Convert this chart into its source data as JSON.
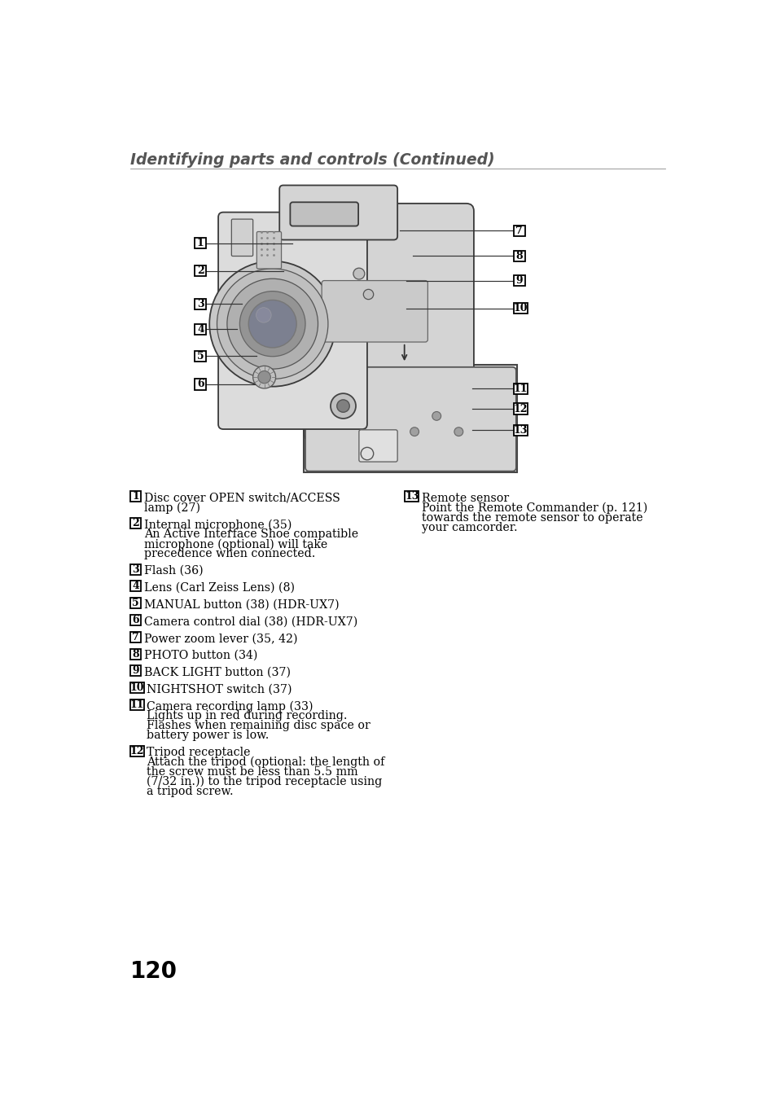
{
  "title": "Identifying parts and controls (Continued)",
  "title_color": "#555555",
  "title_fontsize": 13.5,
  "bg_color": "#ffffff",
  "page_number": "120",
  "left_column_items": [
    {
      "num": "1",
      "text": "Disc cover OPEN switch/ACCESS\nlamp (27)",
      "extra_indent": false
    },
    {
      "num": "2",
      "text": "Internal microphone (35)\nAn Active Interface Shoe compatible\nmicrophone (optional) will take\nprecedence when connected.",
      "extra_indent": true
    },
    {
      "num": "3",
      "text": "Flash (36)",
      "extra_indent": false
    },
    {
      "num": "4",
      "text": "Lens (Carl Zeiss Lens) (8)",
      "extra_indent": false
    },
    {
      "num": "5",
      "text": "MANUAL button (38) (HDR-UX7)",
      "extra_indent": false
    },
    {
      "num": "6",
      "text": "Camera control dial (38) (HDR-UX7)",
      "extra_indent": false
    },
    {
      "num": "7",
      "text": "Power zoom lever (35, 42)",
      "extra_indent": false
    },
    {
      "num": "8",
      "text": "PHOTO button (34)",
      "extra_indent": false
    },
    {
      "num": "9",
      "text": "BACK LIGHT button (37)",
      "extra_indent": false
    },
    {
      "num": "10",
      "text": "NIGHTSHOT switch (37)",
      "extra_indent": false
    },
    {
      "num": "11",
      "text": "Camera recording lamp (33)\nLights up in red during recording.\nFlashes when remaining disc space or\nbattery power is low.",
      "extra_indent": true
    },
    {
      "num": "12",
      "text": "Tripod receptacle\nAttach the tripod (optional: the length of\nthe screw must be less than 5.5 mm\n(7/32 in.)) to the tripod receptacle using\na tripod screw.",
      "extra_indent": true
    }
  ],
  "right_column_items": [
    {
      "num": "13",
      "text": "Remote sensor\nPoint the Remote Commander (p. 121)\ntowards the remote sensor to operate\nyour camcorder.",
      "extra_indent": true
    }
  ],
  "text_color": "#000000",
  "text_fontsize": 10.2,
  "num_fontsize": 9.0,
  "label_positions_left": [
    [
      "1",
      155,
      168
    ],
    [
      "2",
      155,
      212
    ],
    [
      "3",
      155,
      265
    ],
    [
      "4",
      155,
      305
    ],
    [
      "5",
      155,
      348
    ],
    [
      "6",
      155,
      393
    ]
  ],
  "label_positions_right": [
    [
      "7",
      660,
      148
    ],
    [
      "8",
      660,
      188
    ],
    [
      "9",
      660,
      228
    ],
    [
      "10",
      660,
      272
    ]
  ],
  "label_positions_inset": [
    [
      "11",
      660,
      400
    ],
    [
      "12",
      660,
      432
    ],
    [
      "13",
      660,
      466
    ]
  ]
}
